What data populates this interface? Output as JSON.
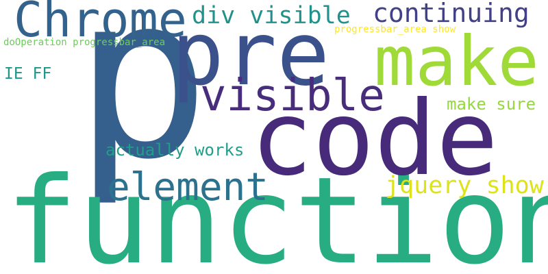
{
  "words": [
    {
      "id": "p",
      "text": "p",
      "color": "#355f8d"
    },
    {
      "id": "function",
      "text": "function",
      "color": "#27ad81"
    },
    {
      "id": "code",
      "text": "code",
      "color": "#472a7a"
    },
    {
      "id": "pre",
      "text": "pre",
      "color": "#3b518b"
    },
    {
      "id": "make",
      "text": "make",
      "color": "#a0da39"
    },
    {
      "id": "chrome",
      "text": "Chrome",
      "color": "#33638d"
    },
    {
      "id": "visible",
      "text": "visible",
      "color": "#472d7b"
    },
    {
      "id": "element",
      "text": "element",
      "color": "#2c728e"
    },
    {
      "id": "continuing",
      "text": "continuing",
      "color": "#424086"
    },
    {
      "id": "div-visible",
      "text": "div visible",
      "color": "#21918c"
    },
    {
      "id": "jquery-show",
      "text": "jquery show",
      "color": "#dde318"
    },
    {
      "id": "actually-works",
      "text": "actually works",
      "color": "#1f9e89"
    },
    {
      "id": "make-sure",
      "text": "make sure",
      "color": "#95d840"
    },
    {
      "id": "ie-ff",
      "text": "IE FF",
      "color": "#1f968b"
    },
    {
      "id": "progressbar-area-show",
      "text": "progressbar_area show",
      "color": "#fde725"
    },
    {
      "id": "dooperation-progressbar-area",
      "text": "doOperation progressbar_area",
      "color": "#6ccd5a"
    }
  ]
}
